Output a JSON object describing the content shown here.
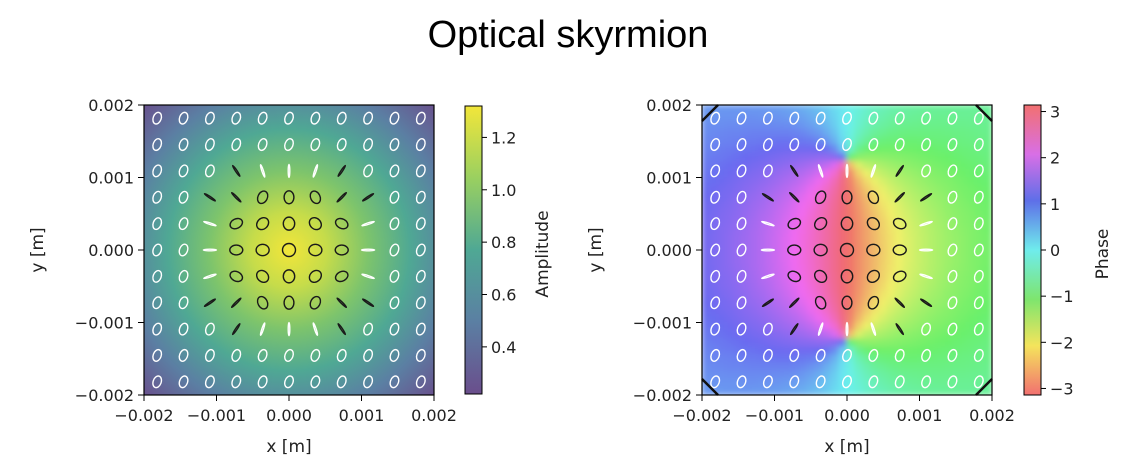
{
  "title": "Optical skyrmion",
  "chart_data": [
    {
      "type": "heatmap",
      "field": "amplitude",
      "xlabel": "x [m]",
      "ylabel": "y [m]",
      "xlim": [
        -0.002,
        0.002
      ],
      "ylim": [
        -0.002,
        0.002
      ],
      "xticks": [
        "−0.002",
        "−0.001",
        "0.000",
        "0.001",
        "0.002"
      ],
      "yticks": [
        "0.002",
        "0.001",
        "0.000",
        "−0.001",
        "−0.002"
      ],
      "colorbar": {
        "label": "Amplitude",
        "colormap": "viridis",
        "range": [
          0.22,
          1.32
        ],
        "ticks": [
          "1.2",
          "1.0",
          "0.8",
          "0.6",
          "0.4"
        ],
        "tick_values": [
          1.2,
          1.0,
          0.8,
          0.6,
          0.4
        ]
      },
      "overlay": "polarization ellipses, 11x11 grid",
      "grid": false
    },
    {
      "type": "heatmap",
      "field": "phase",
      "xlabel": "x [m]",
      "ylabel": "y [m]",
      "xlim": [
        -0.002,
        0.002
      ],
      "ylim": [
        -0.002,
        0.002
      ],
      "xticks": [
        "−0.002",
        "−0.001",
        "0.000",
        "0.001",
        "0.002"
      ],
      "yticks": [
        "0.002",
        "0.001",
        "0.000",
        "−0.001",
        "−0.002"
      ],
      "colorbar": {
        "label": "Phase",
        "colormap": "hsv",
        "range": [
          -3.14159,
          3.14159
        ],
        "ticks": [
          "3",
          "2",
          "1",
          "0",
          "−1",
          "−2",
          "−3"
        ],
        "tick_values": [
          3,
          2,
          1,
          0,
          -1,
          -2,
          -3
        ]
      },
      "overlay": "polarization ellipses, 11x11 grid",
      "grid": false
    }
  ]
}
